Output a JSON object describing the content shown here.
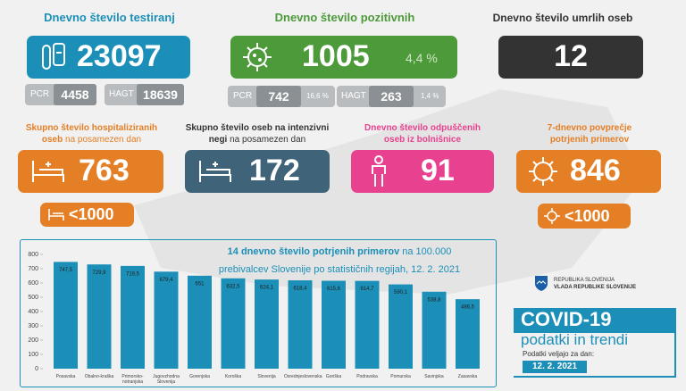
{
  "tests": {
    "title": "Dnevno število testiranj",
    "value": 23097,
    "pcr_label": "PCR",
    "pcr": 4458,
    "hagt_label": "HAGT",
    "hagt": 18639
  },
  "positive": {
    "title": "Dnevno število pozitivnih",
    "value": 1005,
    "share": "4,4 %",
    "pcr_label": "PCR",
    "pcr": 742,
    "pcr_share": "16,6 %",
    "hagt_label": "HAGT",
    "hagt": 263,
    "hagt_share": "1,4 %"
  },
  "deaths": {
    "title": "Dnevno število umrlih oseb",
    "value": 12
  },
  "hospitalized": {
    "title": [
      "Skupno število hospitaliziranih",
      "oseb"
    ],
    "title_rest": "na posamezen dan",
    "value": 763,
    "threshold": "<1000"
  },
  "icu": {
    "title": [
      "Skupno število oseb na intenzivni",
      "negi"
    ],
    "title_rest": "na posamezen dan",
    "value": 172
  },
  "discharged": {
    "title": [
      "Dnevno število odpuščenih",
      "oseb iz bolnišnice"
    ],
    "value": 91
  },
  "average": {
    "title": [
      "7-dnevno povprečje",
      "potrjenih primerov"
    ],
    "value": 846,
    "threshold": "<1000"
  },
  "government": [
    "REPUBLIKA SLOVENIJA",
    "VLADA REPUBLIKE SLOVENIJE"
  ],
  "covid": {
    "title": "COVID-19",
    "subtitle": "podatki in trendi",
    "valid_label": "Podatki veljajo za dan:",
    "date": "12. 2. 2021"
  },
  "chart_data": {
    "type": "bar",
    "title": "14 dnevno število potrjenih primerov",
    "title_rest": "na 100.000",
    "subtitle": "prebivalcev Slovenije po statističnih regijah, 12. 2. 2021",
    "categories": [
      "Posavska",
      "Obalno-kraška",
      "Primorsko-notranjska",
      "Jugovzhodna Slovenija",
      "Gorenjska",
      "Koroška",
      "Slovenija",
      "Osrednjeslovenska",
      "Goriška",
      "Podravska",
      "Pomurska",
      "Savinjska",
      "Zasavska"
    ],
    "values": [
      747.5,
      729.9,
      719.5,
      679.4,
      651,
      632.5,
      624.1,
      618.4,
      615.6,
      614.7,
      590.1,
      538.8,
      486.5
    ],
    "value_labels": [
      "747,5",
      "729,9",
      "719,5",
      "679,4",
      "651",
      "632,5",
      "624,1",
      "618,4",
      "615,6",
      "614,7",
      "590,1",
      "538,8",
      "486,5"
    ],
    "color": "#1b8fb8",
    "ylim": [
      0,
      800
    ],
    "yticks": [
      0,
      100,
      200,
      300,
      400,
      500,
      600,
      700,
      800
    ],
    "grid": false
  }
}
